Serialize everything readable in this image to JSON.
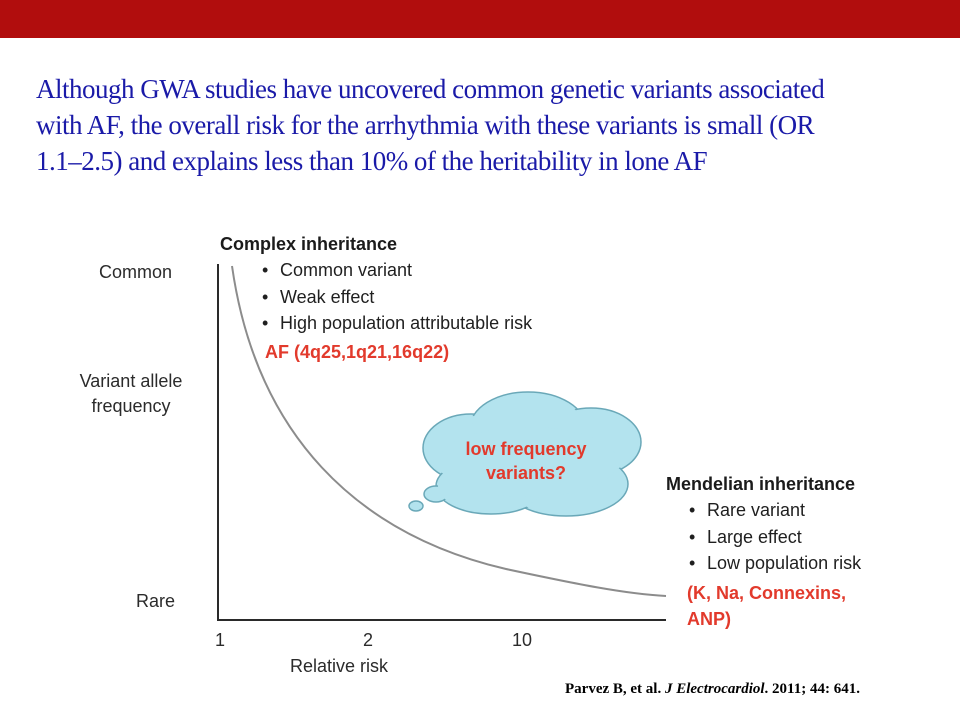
{
  "slide": {
    "header_color": "#b10d0d",
    "headline_lines": [
      "Although GWA studies have uncovered common genetic variants associated",
      "with AF, the overall risk for the arrhythmia with these variants is small (OR",
      "1.1–2.5) and explains less than 10% of the heritability in lone AF"
    ],
    "citation": {
      "authors": "Parvez B, et al.",
      "journal": "J Electrocardiol",
      "details": ". 2011; 44: 641."
    }
  },
  "diagram": {
    "y_axis": {
      "top_label": "Common",
      "middle_label_lines": [
        "Variant allele",
        "frequency"
      ],
      "bottom_label": "Rare"
    },
    "x_axis": {
      "ticks": [
        "1",
        "2",
        "10"
      ],
      "label": "Relative risk"
    },
    "complex": {
      "title": "Complex inheritance",
      "bullets": [
        "Common variant",
        "Weak effect",
        "High population attributable risk"
      ],
      "highlight": "AF (4q25,1q21,16q22)"
    },
    "mendelian": {
      "title": "Mendelian inheritance",
      "bullets": [
        "Rare variant",
        "Large effect",
        "Low population risk"
      ],
      "highlight_lines": [
        "(K, Na, Connexins,",
        "ANP)"
      ]
    },
    "cloud": {
      "lines": [
        "low frequency",
        "variants?"
      ],
      "fill": "#b3e3ee",
      "text_color": "#e23a2c"
    },
    "curve_color": "#8c8c8c",
    "axis_color": "#2a2a2a"
  }
}
